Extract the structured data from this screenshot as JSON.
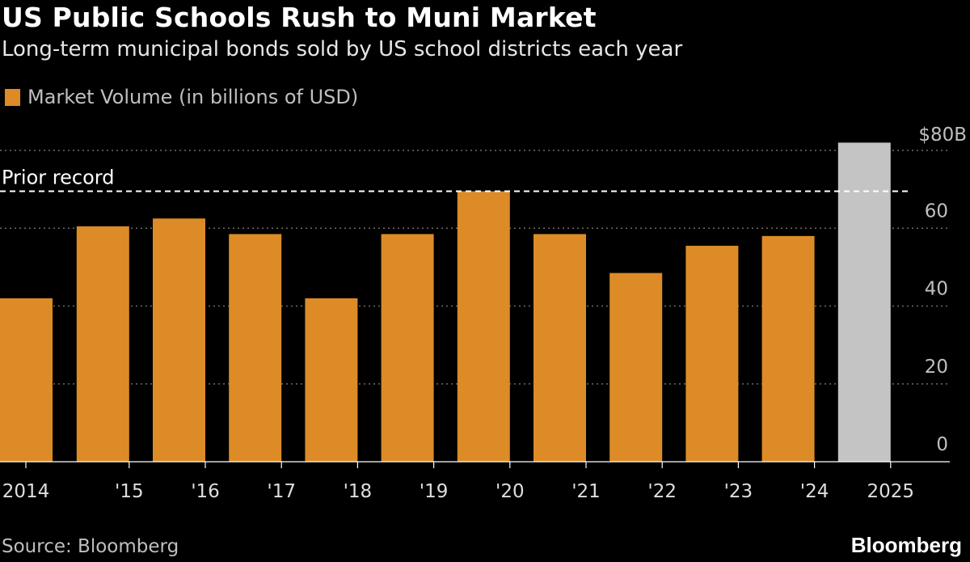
{
  "title": "US Public Schools Rush to Muni Market",
  "subtitle": "Long-term municipal bonds sold by US school districts each year",
  "legend": {
    "label": "Market Volume (in billions of USD)",
    "color": "#dc8b27"
  },
  "footer": {
    "source": "Source: Bloomberg",
    "brand": "Bloomberg"
  },
  "colors": {
    "bar": "#dc8b27",
    "highlight": "#c4c4c4",
    "grid": "#6b6b6b",
    "reference": "#ffffff",
    "text": "#ffffff"
  },
  "chart_data": {
    "type": "bar",
    "title": "US Public Schools Rush to Muni Market",
    "subtitle": "Long-term municipal bonds sold by US school districts each year",
    "categories": [
      "2014",
      "'15",
      "'16",
      "'17",
      "'18",
      "'19",
      "'20",
      "'21",
      "'22",
      "'23",
      "'24",
      "2025"
    ],
    "series": [
      {
        "name": "Market Volume (in billions of USD)",
        "values": [
          42,
          60.5,
          62.5,
          58.5,
          42,
          58.5,
          69.5,
          58.5,
          48.5,
          55.5,
          58,
          82
        ]
      }
    ],
    "highlight_category": "2025",
    "yticks": [
      {
        "value": 0,
        "label": "0"
      },
      {
        "value": 20,
        "label": "20"
      },
      {
        "value": 40,
        "label": "40"
      },
      {
        "value": 60,
        "label": "60"
      },
      {
        "value": 80,
        "label": "$80B"
      }
    ],
    "ylim": [
      0,
      80
    ],
    "reference_line": {
      "value": 69.5,
      "label": "Prior record"
    },
    "xlabel": "",
    "ylabel": "",
    "grid": true,
    "legend_position": "top-left"
  }
}
